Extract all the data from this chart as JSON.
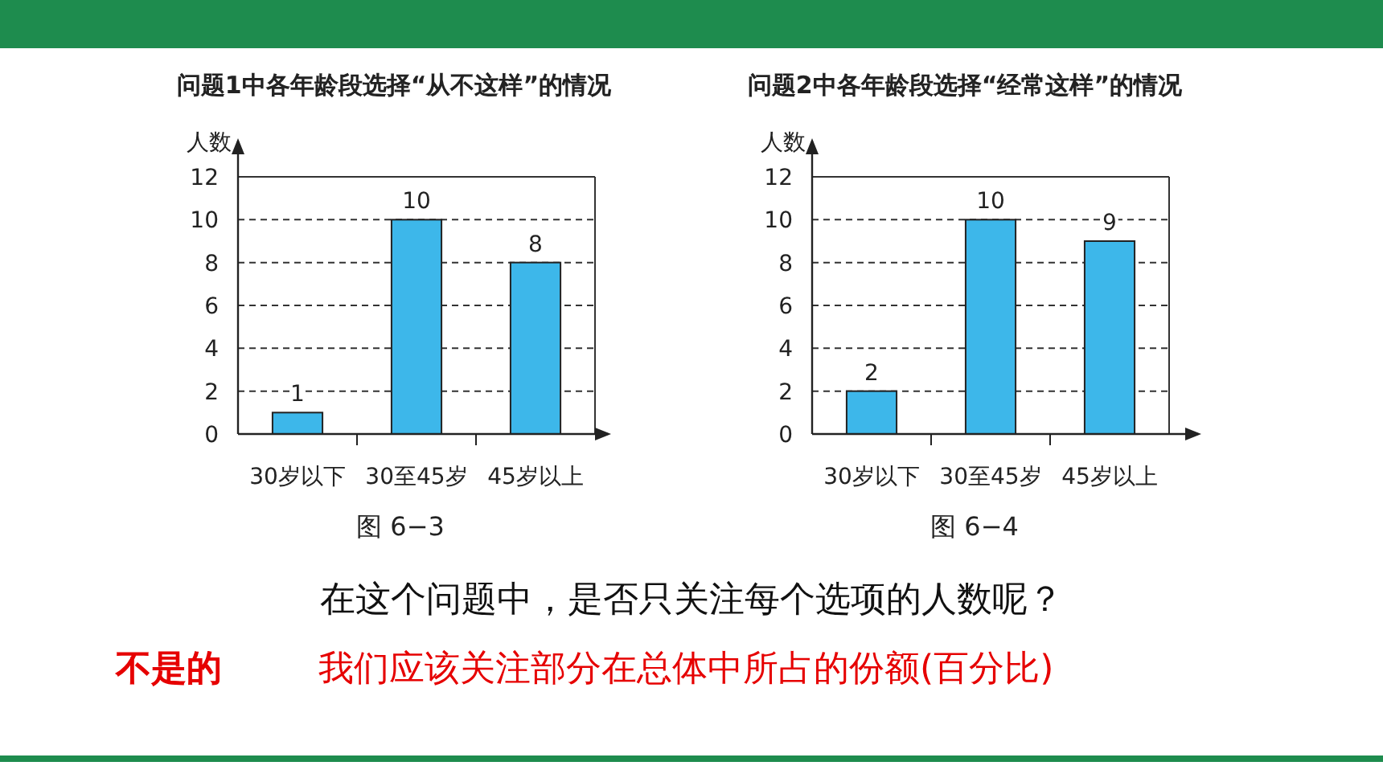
{
  "chart_data": [
    {
      "type": "bar",
      "title": "问题1中各年龄段选择“从不这样”的情况",
      "ylabel": "人数",
      "categories": [
        "30岁以下",
        "30至45岁",
        "45岁以上"
      ],
      "values": [
        1,
        10,
        8
      ],
      "color": "#3db7ea",
      "ylim": [
        0,
        12
      ],
      "yticks": [
        0,
        2,
        4,
        6,
        8,
        10,
        12
      ],
      "grid": "y",
      "data_labels": true,
      "annotations": [
        "图 6−3",
        "在这个问题中，是否只关注每个选项的人数呢？",
        "不是的",
        "我们应该关注部分在总体中所占的份额(百分比)"
      ]
    },
    {
      "type": "bar",
      "title": "问题2中各年龄段选择“经常这样”的情况",
      "ylabel": "人数",
      "categories": [
        "30岁以下",
        "30至45岁",
        "45岁以上"
      ],
      "values": [
        2,
        10,
        9
      ],
      "color": "#3db7ea",
      "ylim": [
        0,
        12
      ],
      "yticks": [
        0,
        2,
        4,
        6,
        8,
        10,
        12
      ],
      "grid": "y",
      "data_labels": true,
      "annotations": [
        "图 6−4"
      ]
    }
  ]
}
